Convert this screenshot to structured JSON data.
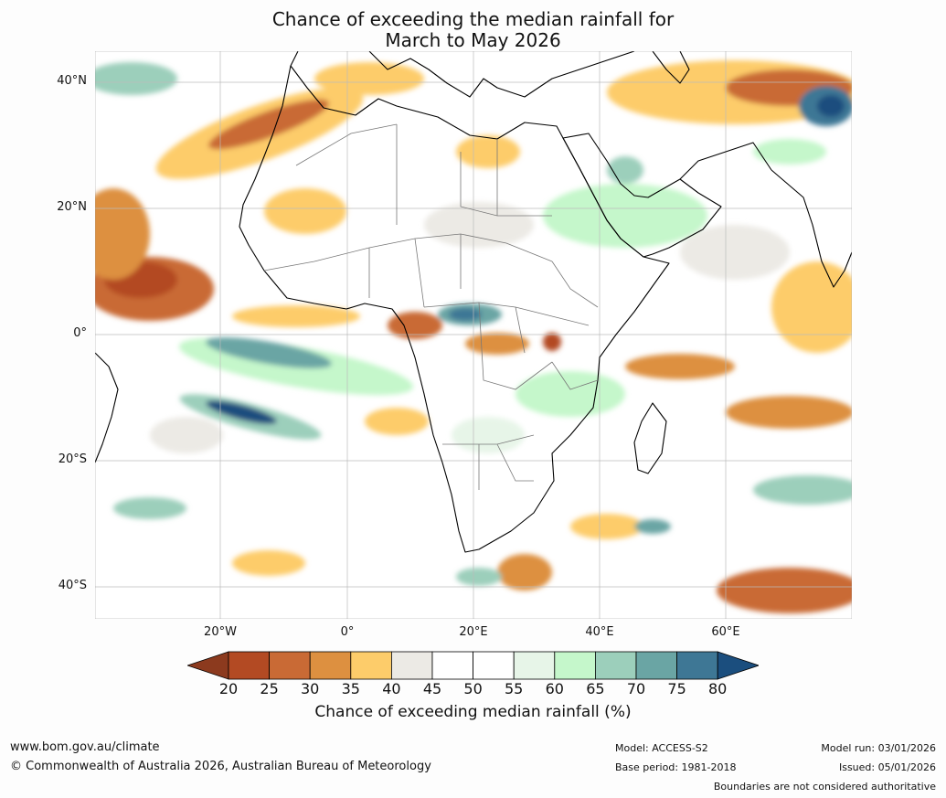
{
  "title": {
    "line1": "Chance of exceeding the median rainfall for",
    "line2": "March to May 2026"
  },
  "map": {
    "lat_labels": [
      "40°N",
      "20°N",
      "0°",
      "20°S",
      "40°S"
    ],
    "lon_labels": [
      "20°W",
      "0°",
      "20°E",
      "40°E",
      "60°E"
    ]
  },
  "colorbar": {
    "ticks": [
      "20",
      "25",
      "30",
      "35",
      "40",
      "45",
      "50",
      "55",
      "60",
      "65",
      "70",
      "75",
      "80"
    ],
    "colors": [
      "#8c3a1e",
      "#b34a23",
      "#c96a35",
      "#dd9040",
      "#fdcc6a",
      "#eceae5",
      "#ffffff",
      "#ffffff",
      "#e7f5e8",
      "#c5f7cb",
      "#9ccfbb",
      "#6aa5a4",
      "#3e7795",
      "#1b4e7e"
    ],
    "label": "Chance of exceeding median rainfall (%)"
  },
  "footer": {
    "url": "www.bom.gov.au/climate",
    "copyright": "© Commonwealth of Australia 2026, Australian Bureau of Meteorology",
    "model": "Model: ACCESS-S2",
    "base_period": "Base period: 1981-2018",
    "model_run": "Model run: 03/01/2026",
    "issued": "Issued: 05/01/2026",
    "disclaimer": "Boundaries are not considered authoritative"
  }
}
